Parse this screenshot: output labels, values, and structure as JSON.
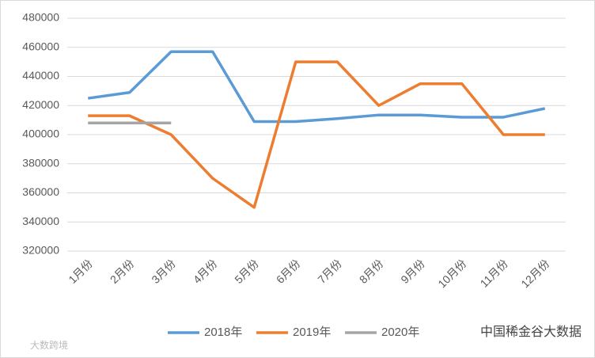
{
  "chart_data": {
    "type": "line",
    "categories": [
      "1月份",
      "2月份",
      "3月份",
      "4月份",
      "5月份",
      "6月份",
      "7月份",
      "8月份",
      "9月份",
      "10月份",
      "11月份",
      "12月份"
    ],
    "series": [
      {
        "name": "2018年",
        "color": "#5b9bd5",
        "values": [
          425000,
          429000,
          457000,
          457000,
          409000,
          409000,
          411000,
          413500,
          413500,
          412000,
          412000,
          418000
        ]
      },
      {
        "name": "2019年",
        "color": "#ed7d31",
        "values": [
          413000,
          413000,
          400000,
          370000,
          350000,
          450000,
          450000,
          420000,
          435000,
          435000,
          400000,
          400000
        ]
      },
      {
        "name": "2020年",
        "color": "#a5a5a5",
        "values": [
          408000,
          408000,
          408000,
          null,
          null,
          null,
          null,
          null,
          null,
          null,
          null,
          null
        ]
      }
    ],
    "ylim": [
      320000,
      480000
    ],
    "yticks": [
      320000,
      340000,
      360000,
      380000,
      400000,
      420000,
      440000,
      460000,
      480000
    ],
    "grid": true,
    "legend": "bottom"
  },
  "watermarks": {
    "right": "中国稀金谷大数据",
    "left": "大数跨境"
  }
}
